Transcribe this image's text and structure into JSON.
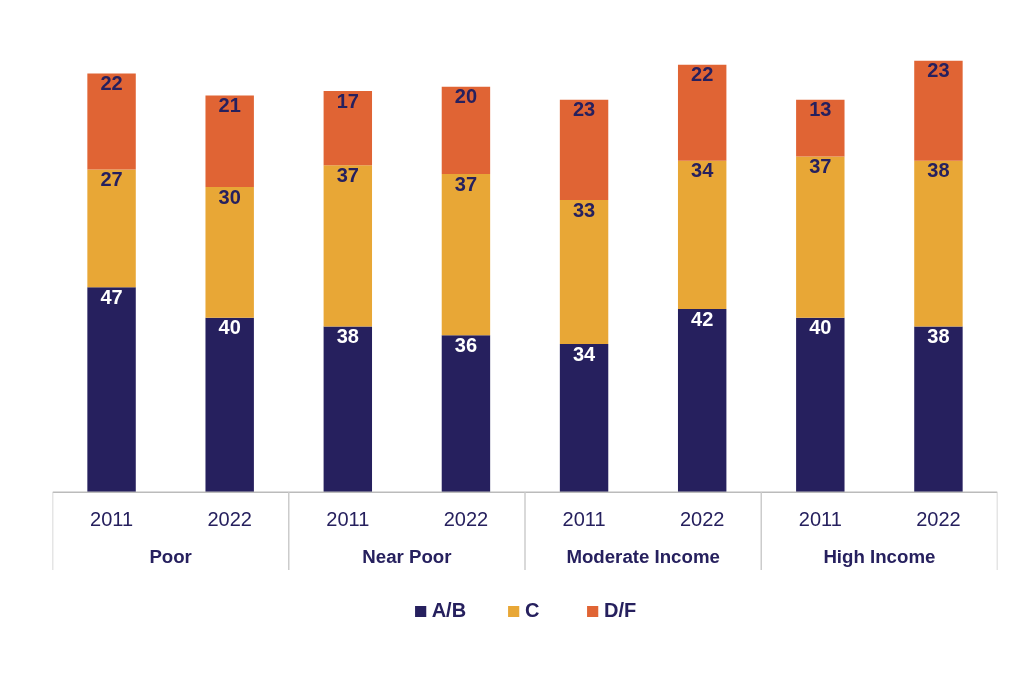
{
  "chart_data": {
    "type": "bar",
    "stacked": true,
    "categories": [
      "2011",
      "2022",
      "2011",
      "2022",
      "2011",
      "2022",
      "2011",
      "2022"
    ],
    "series": [
      {
        "name": "A/B",
        "color": "#26205e",
        "values": [
          47,
          40,
          38,
          36,
          34,
          42,
          40,
          38
        ]
      },
      {
        "name": "C",
        "color": "#e8a736",
        "values": [
          27,
          30,
          37,
          37,
          33,
          34,
          37,
          38
        ]
      },
      {
        "name": "D/F",
        "color": "#e06434",
        "values": [
          22,
          21,
          17,
          20,
          23,
          22,
          13,
          23
        ]
      }
    ],
    "annotations": [
      "Poor",
      "Near Poor",
      "Moderate Income",
      "High Income"
    ],
    "data_labels": true,
    "legend": "bottom",
    "grid": false
  }
}
